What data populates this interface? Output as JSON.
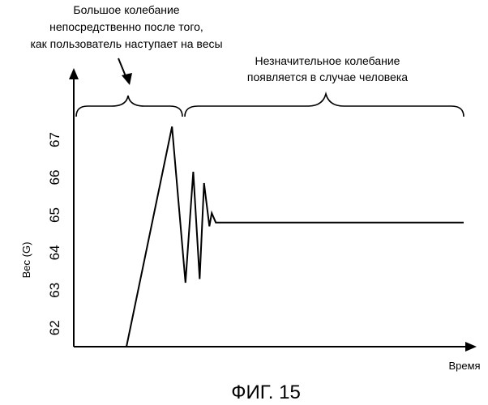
{
  "chart_data": {
    "type": "line",
    "caption": "ФИГ. 15",
    "xlabel": "Время",
    "ylabel": "Вес (G)",
    "yticks": [
      "62",
      "63",
      "64",
      "65",
      "66",
      "67"
    ],
    "ylim": [
      61.5,
      67.4
    ],
    "x_range": [
      0,
      100
    ],
    "grid": false,
    "annotations": [
      {
        "id": "big-oscillation",
        "lines": [
          "Большое колебание",
          "непосредственно после того,",
          "как пользователь наступает на весы"
        ]
      },
      {
        "id": "small-oscillation",
        "lines": [
          "Незначительное колебание",
          "появляется в случае человека"
        ]
      }
    ],
    "series": [
      {
        "x": [
          0,
          13.5,
          17.5,
          19.8,
          21.7,
          23.0,
          24.6,
          25.3,
          26.5,
          100
        ],
        "y": [
          61.5,
          67.35,
          63.2,
          66.15,
          63.3,
          65.85,
          64.7,
          65.05,
          64.8,
          64.8
        ]
      }
    ]
  }
}
